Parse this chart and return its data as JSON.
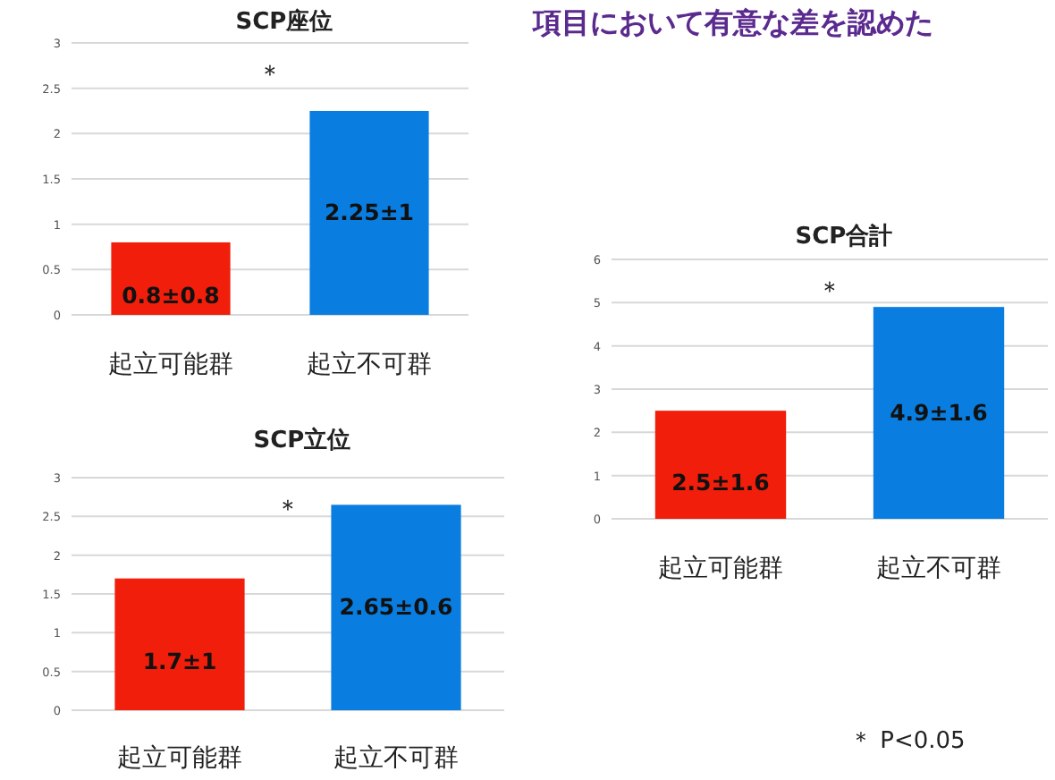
{
  "chart_data": [
    {
      "type": "bar",
      "title": "SCP座位",
      "categories": [
        "起立可能群",
        "起立不可群"
      ],
      "values": [
        0.8,
        2.25
      ],
      "colors": [
        "#f01e0a",
        "#0a7ee0"
      ],
      "value_labels": [
        "0.8±0.8",
        "2.25±1"
      ],
      "ylim": [
        0,
        3
      ],
      "yticks": [
        0,
        0.5,
        1,
        1.5,
        2,
        2.5,
        3
      ],
      "grid": "y",
      "annotations": [
        "＊"
      ]
    },
    {
      "type": "bar",
      "title": "SCP立位",
      "categories": [
        "起立可能群",
        "起立不可群"
      ],
      "values": [
        1.7,
        2.65
      ],
      "colors": [
        "#f01e0a",
        "#0a7ee0"
      ],
      "value_labels": [
        "1.7±1",
        "2.65±0.6"
      ],
      "ylim": [
        0,
        3
      ],
      "yticks": [
        0,
        0.5,
        1,
        1.5,
        2,
        2.5,
        3
      ],
      "grid": "y",
      "annotations": [
        "＊"
      ]
    },
    {
      "type": "bar",
      "title": "SCP合計",
      "categories": [
        "起立可能群",
        "起立不可群"
      ],
      "values": [
        2.5,
        4.9
      ],
      "colors": [
        "#f01e0a",
        "#0a7ee0"
      ],
      "value_labels": [
        "2.5±1.6",
        "4.9±1.6"
      ],
      "ylim": [
        0,
        6
      ],
      "yticks": [
        0,
        1,
        2,
        3,
        4,
        5,
        6
      ],
      "grid": "y",
      "annotations": [
        "＊",
        "＊ P<0.05"
      ]
    },
    {
      "type": "other",
      "title": "項目において有意な差を認めた"
    }
  ]
}
